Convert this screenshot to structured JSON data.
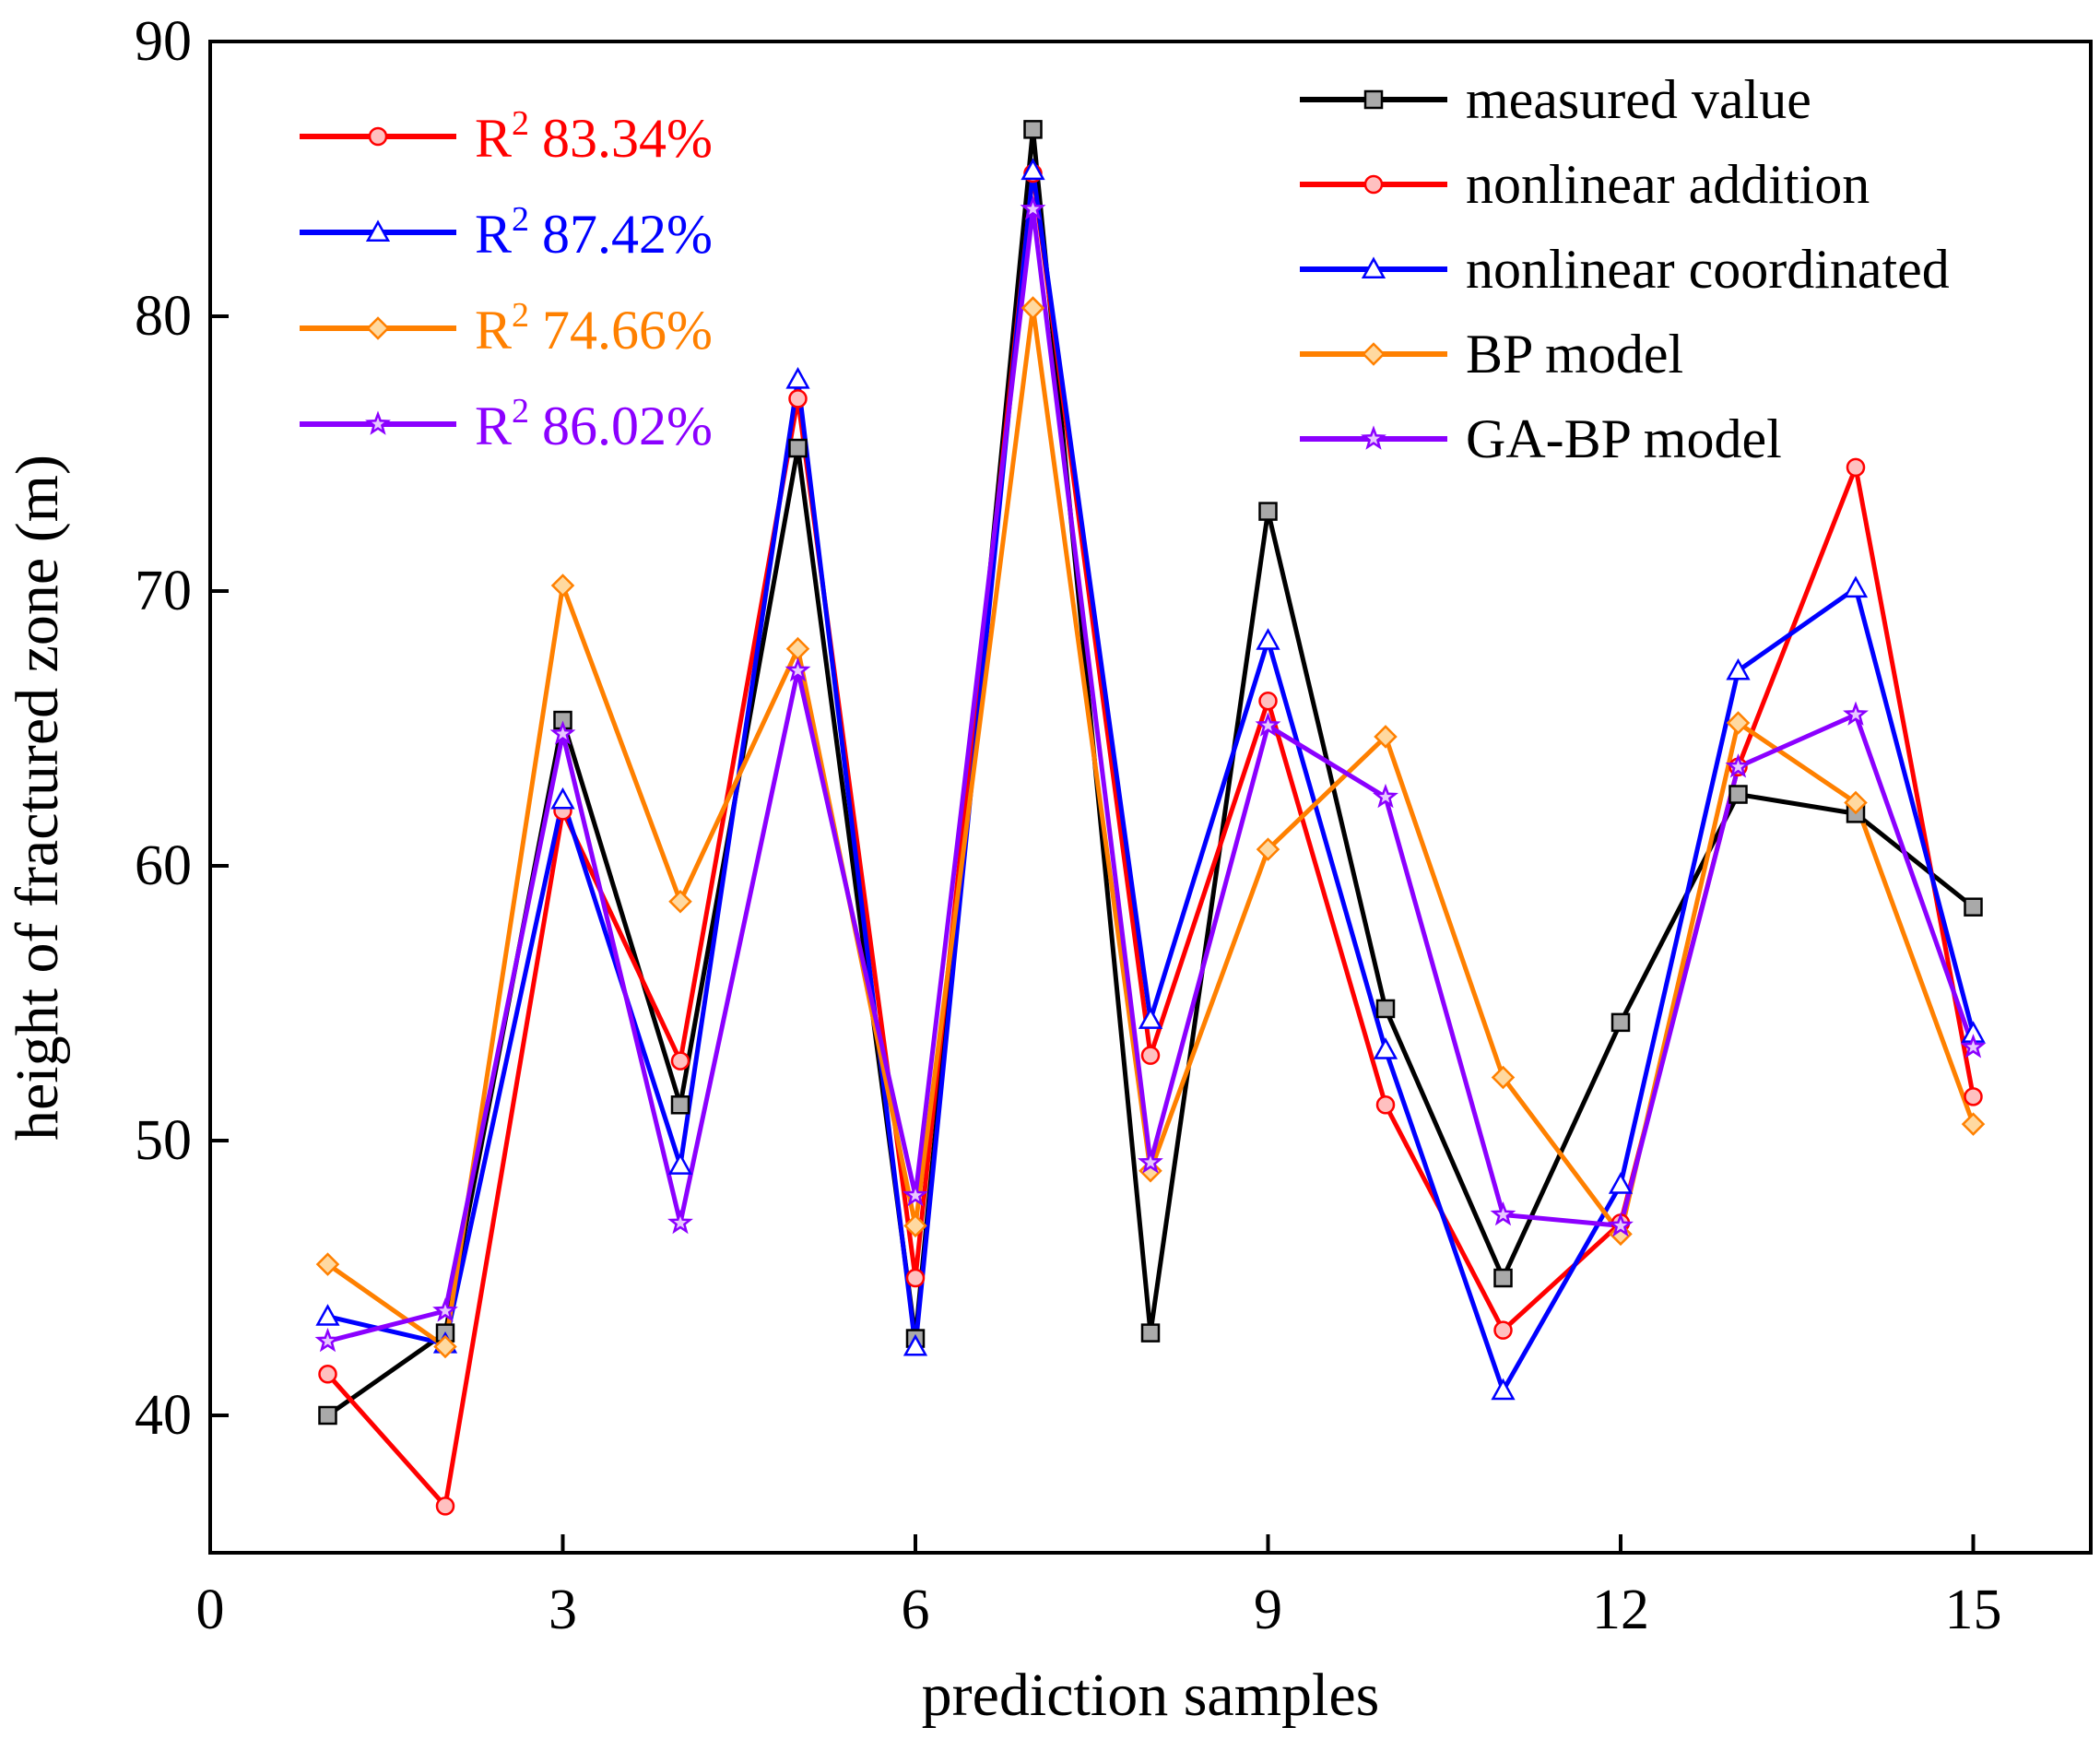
{
  "chart_data": {
    "type": "line",
    "title": "",
    "xlabel": "prediction samples",
    "ylabel": "height of fractured zone (m)",
    "xlim": [
      0,
      16
    ],
    "ylim": [
      35,
      90
    ],
    "x_ticks": [
      0,
      3,
      6,
      9,
      12,
      15
    ],
    "y_ticks": [
      40,
      50,
      60,
      70,
      80,
      90
    ],
    "grid": false,
    "legend_position": "top-right",
    "x": [
      1,
      2,
      3,
      4,
      5,
      6,
      7,
      8,
      9,
      10,
      11,
      12,
      13,
      14,
      15
    ],
    "series": [
      {
        "name": "measured value",
        "color": "#000000",
        "marker": "square",
        "values": [
          40.0,
          43.0,
          65.3,
          51.3,
          75.2,
          42.8,
          86.8,
          43.0,
          72.9,
          54.8,
          45.0,
          54.3,
          62.6,
          61.9,
          58.5
        ]
      },
      {
        "name": "nonlinear addition",
        "color": "#ff0000",
        "marker": "circle",
        "values": [
          41.5,
          36.7,
          62.0,
          52.9,
          77.0,
          45.0,
          85.2,
          53.1,
          66.0,
          51.3,
          43.1,
          47.0,
          63.6,
          74.5,
          51.6
        ]
      },
      {
        "name": "nonlinear coordinated",
        "color": "#0000ff",
        "marker": "triangle",
        "values": [
          43.6,
          42.6,
          62.4,
          49.1,
          77.7,
          42.5,
          85.3,
          54.4,
          68.2,
          53.3,
          40.9,
          48.4,
          67.1,
          70.1,
          53.9
        ]
      },
      {
        "name": "BP model",
        "color": "#ff8000",
        "marker": "diamond",
        "values": [
          45.5,
          42.5,
          70.2,
          58.7,
          67.9,
          46.9,
          80.3,
          48.9,
          60.6,
          64.7,
          52.3,
          46.6,
          65.2,
          62.3,
          50.6
        ]
      },
      {
        "name": "GA-BP model",
        "color": "#8b00ff",
        "marker": "star",
        "values": [
          42.7,
          43.8,
          64.8,
          47.0,
          67.1,
          48.0,
          83.9,
          49.2,
          65.1,
          62.5,
          47.3,
          46.9,
          63.6,
          65.5,
          53.4
        ]
      }
    ],
    "annotations": [
      {
        "label": "R",
        "superscript": "2",
        "value": "83.34%",
        "color": "#ff0000",
        "marker": "circle"
      },
      {
        "label": "R",
        "superscript": "2",
        "value": "87.42%",
        "color": "#0000ff",
        "marker": "triangle"
      },
      {
        "label": "R",
        "superscript": "2",
        "value": "74.66%",
        "color": "#ff8000",
        "marker": "diamond"
      },
      {
        "label": "R",
        "superscript": "2",
        "value": "86.02%",
        "color": "#8b00ff",
        "marker": "star"
      }
    ]
  }
}
